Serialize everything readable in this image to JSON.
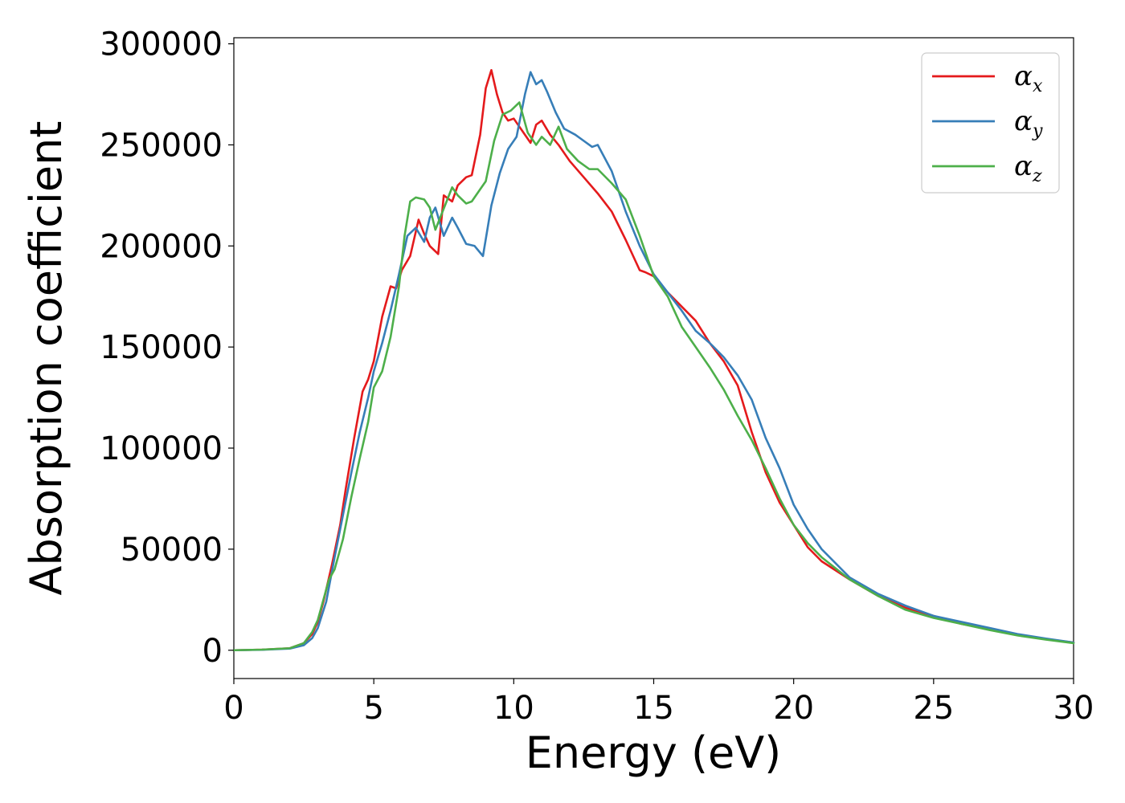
{
  "chart_data": {
    "type": "line",
    "title": "",
    "xlabel": "Energy (eV)",
    "ylabel": "Absorption coefficient",
    "xlim": [
      0,
      30
    ],
    "ylim": [
      -14000,
      303000
    ],
    "xticks": [
      0,
      5,
      10,
      15,
      20,
      25,
      30
    ],
    "xtick_labels": [
      "0",
      "5",
      "10",
      "15",
      "20",
      "25",
      "30"
    ],
    "yticks": [
      0,
      50000,
      100000,
      150000,
      200000,
      250000,
      300000
    ],
    "ytick_labels": [
      "0",
      "50000",
      "100000",
      "150000",
      "200000",
      "250000",
      "300000"
    ],
    "grid": false,
    "legend_position": "top-right",
    "series": [
      {
        "name": "α_x",
        "symbol": "α",
        "subscript": "x",
        "color": "#e41a1c",
        "x": [
          0,
          1,
          2,
          2.5,
          2.8,
          3.0,
          3.2,
          3.5,
          3.8,
          4.0,
          4.3,
          4.6,
          4.8,
          5.0,
          5.3,
          5.6,
          5.8,
          6.0,
          6.3,
          6.6,
          6.8,
          7.0,
          7.3,
          7.5,
          7.8,
          8.0,
          8.3,
          8.5,
          8.8,
          9.0,
          9.2,
          9.4,
          9.6,
          9.8,
          10.0,
          10.3,
          10.6,
          10.8,
          11.0,
          11.3,
          11.6,
          12.0,
          12.5,
          13.0,
          13.5,
          14.0,
          14.5,
          14.7,
          15.0,
          15.5,
          16.0,
          16.5,
          17.0,
          17.5,
          18.0,
          18.5,
          19.0,
          19.5,
          20.0,
          20.5,
          21.0,
          22.0,
          23.0,
          24.0,
          25.0,
          26.0,
          27.0,
          28.0,
          29.0,
          30.0
        ],
        "y": [
          0,
          300,
          1000,
          3500,
          8000,
          14000,
          24000,
          42000,
          62000,
          80000,
          105000,
          128000,
          134000,
          143000,
          165000,
          180000,
          179000,
          188000,
          195000,
          213000,
          206000,
          200000,
          196000,
          225000,
          222000,
          230000,
          234000,
          235000,
          255000,
          278000,
          287000,
          275000,
          266000,
          262000,
          263000,
          257000,
          251000,
          260000,
          262000,
          255000,
          250000,
          242000,
          234000,
          226000,
          217000,
          203000,
          188000,
          187000,
          185000,
          177000,
          170000,
          163000,
          152000,
          143000,
          131000,
          108000,
          88000,
          73000,
          62000,
          51000,
          44000,
          35000,
          27000,
          21000,
          17000,
          13000,
          10500,
          7500,
          5500,
          3800
        ]
      },
      {
        "name": "α_y",
        "symbol": "α",
        "subscript": "y",
        "color": "#377eb8",
        "x": [
          0,
          1,
          2,
          2.5,
          2.8,
          3.0,
          3.3,
          3.6,
          3.9,
          4.2,
          4.5,
          4.8,
          5.0,
          5.3,
          5.6,
          5.9,
          6.2,
          6.5,
          6.8,
          7.0,
          7.2,
          7.5,
          7.8,
          8.0,
          8.3,
          8.6,
          8.9,
          9.2,
          9.5,
          9.8,
          10.1,
          10.4,
          10.6,
          10.8,
          11.0,
          11.2,
          11.5,
          11.8,
          12.2,
          12.5,
          12.8,
          13.0,
          13.5,
          14.0,
          14.5,
          15.0,
          15.5,
          16.0,
          16.5,
          17.0,
          17.5,
          18.0,
          18.5,
          19.0,
          19.5,
          20.0,
          20.5,
          21.0,
          22.0,
          23.0,
          24.0,
          25.0,
          26.0,
          27.0,
          28.0,
          29.0,
          30.0
        ],
        "y": [
          0,
          200,
          800,
          2500,
          6000,
          11000,
          24000,
          46000,
          67000,
          88000,
          108000,
          125000,
          138000,
          152000,
          168000,
          186000,
          205000,
          209000,
          202000,
          214000,
          219000,
          205000,
          214000,
          209000,
          201000,
          200000,
          195000,
          220000,
          236000,
          248000,
          254000,
          275000,
          286000,
          280000,
          282000,
          276000,
          266000,
          258000,
          255000,
          252000,
          249000,
          250000,
          237000,
          217000,
          200000,
          186000,
          177000,
          168000,
          158000,
          152000,
          145000,
          136000,
          124000,
          105000,
          90000,
          72000,
          60000,
          50000,
          36000,
          28000,
          22000,
          17000,
          14000,
          11000,
          8000,
          5800,
          3800
        ]
      },
      {
        "name": "α_z",
        "symbol": "α",
        "subscript": "z",
        "color": "#4daf4a",
        "x": [
          0,
          1,
          2,
          2.5,
          2.8,
          3.0,
          3.2,
          3.4,
          3.6,
          3.9,
          4.2,
          4.5,
          4.8,
          5.0,
          5.3,
          5.6,
          5.9,
          6.1,
          6.3,
          6.5,
          6.8,
          7.0,
          7.2,
          7.4,
          7.6,
          7.8,
          8.0,
          8.3,
          8.5,
          8.8,
          9.0,
          9.3,
          9.6,
          9.9,
          10.2,
          10.5,
          10.8,
          11.0,
          11.3,
          11.6,
          11.9,
          12.3,
          12.7,
          13.0,
          13.5,
          14.0,
          14.5,
          15.0,
          15.5,
          16.0,
          16.5,
          17.0,
          17.5,
          18.0,
          18.5,
          19.0,
          19.5,
          20.0,
          20.5,
          21.0,
          22.0,
          23.0,
          24.0,
          25.0,
          26.0,
          27.0,
          28.0,
          29.0,
          30.0
        ],
        "y": [
          0,
          300,
          1000,
          3500,
          9000,
          15000,
          25000,
          35000,
          40000,
          55000,
          76000,
          95000,
          113000,
          130000,
          138000,
          155000,
          180000,
          205000,
          222000,
          224000,
          223000,
          219000,
          208000,
          215000,
          222000,
          229000,
          225000,
          221000,
          222000,
          228000,
          232000,
          252000,
          265000,
          267000,
          271000,
          256000,
          250000,
          254000,
          250000,
          259000,
          248000,
          242000,
          238000,
          238000,
          231000,
          223000,
          205000,
          185000,
          175000,
          160000,
          150000,
          140000,
          129000,
          116000,
          104000,
          90000,
          75000,
          62000,
          53000,
          46000,
          35000,
          27000,
          20000,
          16000,
          13000,
          10000,
          7300,
          5300,
          3500
        ]
      }
    ]
  }
}
